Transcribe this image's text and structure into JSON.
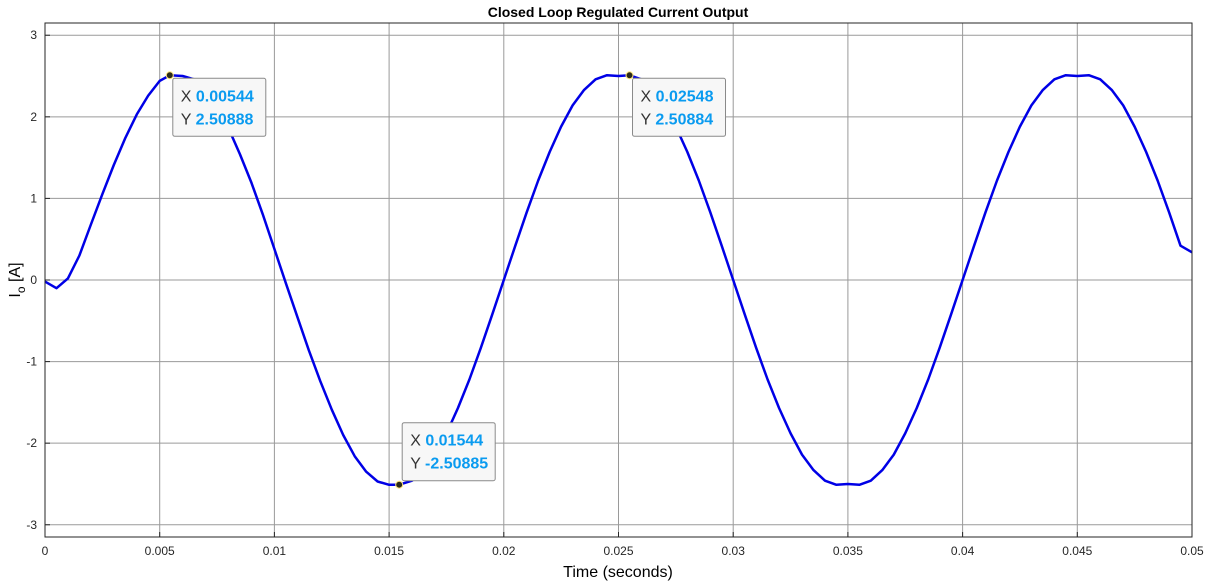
{
  "chart_data": {
    "type": "line",
    "title": "Closed Loop Regulated Current Output",
    "xlabel": "Time (seconds)",
    "ylabel": "I_o [A]",
    "xlim": [
      0,
      0.05
    ],
    "ylim": [
      -3.15,
      3.15
    ],
    "x_ticks": [
      0,
      0.005,
      0.01,
      0.015,
      0.02,
      0.025,
      0.03,
      0.035,
      0.04,
      0.045,
      0.05
    ],
    "x_tick_labels": [
      "0",
      "0.005",
      "0.01",
      "0.015",
      "0.02",
      "0.025",
      "0.03",
      "0.035",
      "0.04",
      "0.045",
      "0.05"
    ],
    "y_ticks": [
      -3,
      -2,
      -1,
      0,
      1,
      2,
      3
    ],
    "y_tick_labels": [
      "-3",
      "-2",
      "-1",
      "0",
      "1",
      "2",
      "3"
    ],
    "grid": true,
    "series": [
      {
        "color": "#0000e6",
        "x": [
          0,
          0.0005,
          0.001,
          0.0015,
          0.002,
          0.0025,
          0.003,
          0.0035,
          0.004,
          0.0045,
          0.005,
          0.00544,
          0.006,
          0.0065,
          0.007,
          0.0075,
          0.008,
          0.0085,
          0.009,
          0.0095,
          0.01,
          0.0105,
          0.011,
          0.0115,
          0.012,
          0.0125,
          0.013,
          0.0135,
          0.014,
          0.0145,
          0.015,
          0.01544,
          0.016,
          0.0165,
          0.017,
          0.0175,
          0.018,
          0.0185,
          0.019,
          0.0195,
          0.02,
          0.0205,
          0.021,
          0.0215,
          0.022,
          0.0225,
          0.023,
          0.0235,
          0.024,
          0.0245,
          0.025,
          0.02548,
          0.026,
          0.0265,
          0.027,
          0.0275,
          0.028,
          0.0285,
          0.029,
          0.0295,
          0.03,
          0.0305,
          0.031,
          0.0315,
          0.032,
          0.0325,
          0.033,
          0.0335,
          0.034,
          0.0345,
          0.035,
          0.0355,
          0.036,
          0.0365,
          0.037,
          0.0375,
          0.038,
          0.0385,
          0.039,
          0.0395,
          0.04,
          0.0405,
          0.041,
          0.0415,
          0.042,
          0.0425,
          0.043,
          0.0435,
          0.044,
          0.0445,
          0.045,
          0.0455,
          0.046,
          0.0465,
          0.047,
          0.0475,
          0.048,
          0.0485,
          0.049,
          0.0495,
          0.05
        ],
        "y": [
          -0.02,
          -0.1,
          0.02,
          0.3,
          0.68,
          1.05,
          1.41,
          1.74,
          2.03,
          2.26,
          2.44,
          2.50888,
          2.5,
          2.46,
          2.32,
          2.12,
          1.86,
          1.54,
          1.19,
          0.8,
          0.38,
          -0.04,
          -0.45,
          -0.86,
          -1.24,
          -1.59,
          -1.9,
          -2.16,
          -2.35,
          -2.47,
          -2.51,
          -2.50885,
          -2.46,
          -2.33,
          -2.14,
          -1.88,
          -1.57,
          -1.22,
          -0.83,
          -0.42,
          0.0,
          0.42,
          0.83,
          1.22,
          1.57,
          1.88,
          2.14,
          2.33,
          2.46,
          2.51,
          2.5,
          2.50884,
          2.46,
          2.33,
          2.14,
          1.88,
          1.57,
          1.22,
          0.83,
          0.42,
          0.0,
          -0.42,
          -0.83,
          -1.22,
          -1.57,
          -1.88,
          -2.14,
          -2.33,
          -2.46,
          -2.51,
          -2.5,
          -2.51,
          -2.46,
          -2.33,
          -2.14,
          -1.88,
          -1.57,
          -1.22,
          -0.83,
          -0.42,
          0.0,
          0.42,
          0.83,
          1.22,
          1.57,
          1.88,
          2.14,
          2.33,
          2.46,
          2.51,
          2.5,
          2.51,
          2.46,
          2.33,
          2.14,
          1.88,
          1.57,
          1.22,
          0.83,
          0.42,
          0.34
        ]
      }
    ],
    "datatips": [
      {
        "x_value": 0.00544,
        "y_value": 2.50888,
        "x_label": "X",
        "y_label": "Y",
        "x_text": "0.00544",
        "y_text": "2.50888",
        "box": "below-right"
      },
      {
        "x_value": 0.02548,
        "y_value": 2.50884,
        "x_label": "X",
        "y_label": "Y",
        "x_text": "0.02548",
        "y_text": "2.50884",
        "box": "below-right"
      },
      {
        "x_value": 0.01544,
        "y_value": -2.50885,
        "x_label": "X",
        "y_label": "Y",
        "x_text": "0.01544",
        "y_text": "-2.50885",
        "box": "above-right"
      }
    ],
    "colors": {
      "line": "#0000e6",
      "datatip_value": "#0a9bf0",
      "grid": "#9a9a9a"
    }
  }
}
